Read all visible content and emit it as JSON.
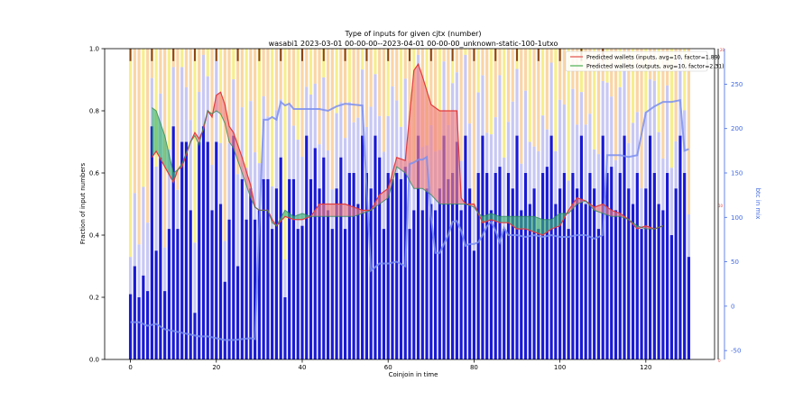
{
  "chart_data": {
    "type": "bar",
    "title": "Type of inputs for given cjtx (number)",
    "subtitle": "wasabi1 2023-03-01 00-00-00--2023-04-01 00-00-00_unknown-static-100-1utxo",
    "xlabel": "Coinjoin in time",
    "ylabel": "Fraction of input numbers",
    "y2label": "btc in mix",
    "xlim": [
      -6,
      136
    ],
    "ylim": [
      0,
      1.0
    ],
    "y2lim": [
      -60,
      290
    ],
    "x_ticks": [
      0,
      20,
      40,
      60,
      80,
      100,
      120
    ],
    "y_ticks": [
      0.0,
      0.2,
      0.4,
      0.6,
      0.8,
      1.0
    ],
    "y2_ticks": [
      -50,
      0,
      50,
      100,
      150,
      200,
      250
    ],
    "grid": false,
    "legend_position": "top-right",
    "legend": [
      {
        "label": "Predicted wallets (inputs, avg=10, factor=1.89)",
        "color": "#e8716c"
      },
      {
        "label": "Predicted wallets (outputs, avg=10, factor=2.31)",
        "color": "#6fbf73"
      }
    ],
    "bar_colors": {
      "fresh": "#1a1ad4",
      "light": "#c8c8f4",
      "remix": "#f0e030",
      "orange": "#f5b35c",
      "brown": "#8b4513"
    },
    "bar_blue_heights": [
      0.21,
      0.3,
      0.2,
      0.27,
      0.22,
      0.75,
      0.35,
      0.65,
      0.22,
      0.42,
      0.75,
      0.42,
      0.7,
      0.7,
      0.48,
      0.15,
      0.7,
      0.75,
      0.7,
      0.48,
      0.7,
      0.5,
      0.25,
      0.45,
      0.72,
      0.3,
      0.58,
      0.45,
      0.55,
      0.45,
      0.48,
      0.58,
      0.58,
      0.42,
      0.55,
      0.65,
      0.2,
      0.58,
      0.58,
      0.42,
      0.43,
      0.72,
      0.58,
      0.68,
      0.55,
      0.65,
      0.48,
      0.42,
      0.55,
      0.65,
      0.42,
      0.6,
      0.6,
      0.5,
      0.72,
      0.6,
      0.55,
      0.72,
      0.65,
      0.42,
      0.6,
      0.58,
      0.6,
      0.58,
      0.62,
      0.42,
      0.48,
      0.72,
      0.48,
      0.55,
      0.5,
      0.48,
      0.55,
      0.72,
      0.58,
      0.6,
      0.7,
      0.48,
      0.72,
      0.55,
      0.35,
      0.6,
      0.72,
      0.6,
      0.48,
      0.6,
      0.62,
      0.42,
      0.6,
      0.55,
      0.72,
      0.48,
      0.6,
      0.5,
      0.55,
      0.42,
      0.6,
      0.62,
      0.72,
      0.5,
      0.55,
      0.6,
      0.42,
      0.6,
      0.55,
      0.72,
      0.5,
      0.6,
      0.55,
      0.42,
      0.72,
      0.6,
      0.62,
      0.48,
      0.6,
      0.72,
      0.55,
      0.5,
      0.6,
      0.42,
      0.55,
      0.72,
      0.6,
      0.5,
      0.48,
      0.6,
      0.4,
      0.55,
      0.72,
      0.6,
      0.33
    ],
    "btc_in_mix_line": {
      "color": "#7b8ff0",
      "points": [
        [
          0,
          -18
        ],
        [
          2,
          -18
        ],
        [
          4,
          -22
        ],
        [
          6,
          -20
        ],
        [
          8,
          -26
        ],
        [
          10,
          -28
        ],
        [
          12,
          -30
        ],
        [
          14,
          -32
        ],
        [
          16,
          -34
        ],
        [
          18,
          -34
        ],
        [
          20,
          -36
        ],
        [
          22,
          -38
        ],
        [
          24,
          -38
        ],
        [
          26,
          -37
        ],
        [
          28,
          -36
        ],
        [
          29,
          -37
        ],
        [
          30,
          95
        ],
        [
          31,
          210
        ],
        [
          32,
          210
        ],
        [
          33,
          213
        ],
        [
          34,
          210
        ],
        [
          35,
          230
        ],
        [
          36,
          226
        ],
        [
          37,
          228
        ],
        [
          38,
          222
        ],
        [
          40,
          222
        ],
        [
          42,
          222
        ],
        [
          44,
          222
        ],
        [
          46,
          220
        ],
        [
          48,
          225
        ],
        [
          50,
          228
        ],
        [
          52,
          227
        ],
        [
          54,
          226
        ],
        [
          56,
          40
        ],
        [
          58,
          48
        ],
        [
          60,
          48
        ],
        [
          62,
          50
        ],
        [
          64,
          45
        ],
        [
          65,
          160
        ],
        [
          66,
          162
        ],
        [
          67,
          165
        ],
        [
          68,
          165
        ],
        [
          69,
          168
        ],
        [
          70,
          100
        ],
        [
          71,
          60
        ],
        [
          72,
          60
        ],
        [
          73,
          70
        ],
        [
          74,
          80
        ],
        [
          75,
          95
        ],
        [
          76,
          96
        ],
        [
          77,
          85
        ],
        [
          78,
          68
        ],
        [
          79,
          70
        ],
        [
          80,
          70
        ],
        [
          81,
          72
        ],
        [
          82,
          80
        ],
        [
          83,
          90
        ],
        [
          84,
          95
        ],
        [
          85,
          85
        ],
        [
          86,
          72
        ],
        [
          87,
          88
        ],
        [
          88,
          80
        ],
        [
          90,
          80
        ],
        [
          92,
          78
        ],
        [
          94,
          80
        ],
        [
          96,
          78
        ],
        [
          98,
          80
        ],
        [
          100,
          78
        ],
        [
          102,
          78
        ],
        [
          104,
          80
        ],
        [
          106,
          80
        ],
        [
          108,
          76
        ],
        [
          110,
          80
        ],
        [
          111,
          170
        ],
        [
          112,
          170
        ],
        [
          114,
          170
        ],
        [
          116,
          168
        ],
        [
          118,
          170
        ],
        [
          120,
          218
        ],
        [
          122,
          225
        ],
        [
          124,
          230
        ],
        [
          126,
          230
        ],
        [
          128,
          232
        ],
        [
          129,
          175
        ],
        [
          130,
          177
        ]
      ]
    },
    "predicted_inputs_line": {
      "color": "#e23c3c",
      "points": [
        [
          5,
          0.65
        ],
        [
          6,
          0.67
        ],
        [
          8,
          0.62
        ],
        [
          10,
          0.57
        ],
        [
          11,
          0.61
        ],
        [
          12,
          0.62
        ],
        [
          14,
          0.7
        ],
        [
          15,
          0.73
        ],
        [
          16,
          0.71
        ],
        [
          17,
          0.74
        ],
        [
          18,
          0.8
        ],
        [
          19,
          0.78
        ],
        [
          20,
          0.85
        ],
        [
          21,
          0.86
        ],
        [
          22,
          0.82
        ],
        [
          23,
          0.75
        ],
        [
          24,
          0.73
        ],
        [
          26,
          0.65
        ],
        [
          28,
          0.56
        ],
        [
          29,
          0.49
        ],
        [
          30,
          0.48
        ],
        [
          32,
          0.48
        ],
        [
          33,
          0.45
        ],
        [
          34,
          0.43
        ],
        [
          36,
          0.46
        ],
        [
          38,
          0.45
        ],
        [
          40,
          0.45
        ],
        [
          42,
          0.46
        ],
        [
          44,
          0.5
        ],
        [
          46,
          0.5
        ],
        [
          48,
          0.5
        ],
        [
          50,
          0.5
        ],
        [
          52,
          0.49
        ],
        [
          54,
          0.48
        ],
        [
          56,
          0.48
        ],
        [
          58,
          0.53
        ],
        [
          60,
          0.55
        ],
        [
          62,
          0.65
        ],
        [
          64,
          0.64
        ],
        [
          66,
          0.93
        ],
        [
          67,
          0.95
        ],
        [
          68,
          0.91
        ],
        [
          70,
          0.82
        ],
        [
          72,
          0.8
        ],
        [
          74,
          0.8
        ],
        [
          76,
          0.8
        ],
        [
          77,
          0.52
        ],
        [
          78,
          0.5
        ],
        [
          80,
          0.5
        ],
        [
          81,
          0.47
        ],
        [
          82,
          0.44
        ],
        [
          84,
          0.45
        ],
        [
          86,
          0.44
        ],
        [
          88,
          0.44
        ],
        [
          90,
          0.42
        ],
        [
          92,
          0.42
        ],
        [
          94,
          0.41
        ],
        [
          96,
          0.4
        ],
        [
          98,
          0.42
        ],
        [
          100,
          0.43
        ],
        [
          102,
          0.48
        ],
        [
          104,
          0.52
        ],
        [
          106,
          0.51
        ],
        [
          108,
          0.49
        ],
        [
          110,
          0.5
        ],
        [
          112,
          0.48
        ],
        [
          114,
          0.47
        ],
        [
          116,
          0.45
        ],
        [
          118,
          0.42
        ],
        [
          120,
          0.43
        ],
        [
          122,
          0.42
        ],
        [
          124,
          0.43
        ]
      ]
    },
    "predicted_outputs_line": {
      "color": "#2e8b57",
      "points": [
        [
          5,
          0.81
        ],
        [
          6,
          0.8
        ],
        [
          8,
          0.72
        ],
        [
          10,
          0.6
        ],
        [
          11,
          0.61
        ],
        [
          12,
          0.63
        ],
        [
          14,
          0.7
        ],
        [
          15,
          0.72
        ],
        [
          16,
          0.69
        ],
        [
          17,
          0.75
        ],
        [
          18,
          0.8
        ],
        [
          19,
          0.79
        ],
        [
          20,
          0.8
        ],
        [
          21,
          0.79
        ],
        [
          22,
          0.76
        ],
        [
          23,
          0.7
        ],
        [
          24,
          0.68
        ],
        [
          26,
          0.6
        ],
        [
          28,
          0.52
        ],
        [
          29,
          0.49
        ],
        [
          30,
          0.48
        ],
        [
          32,
          0.48
        ],
        [
          33,
          0.44
        ],
        [
          34,
          0.43
        ],
        [
          36,
          0.48
        ],
        [
          38,
          0.46
        ],
        [
          40,
          0.47
        ],
        [
          42,
          0.46
        ],
        [
          44,
          0.46
        ],
        [
          46,
          0.46
        ],
        [
          48,
          0.46
        ],
        [
          50,
          0.46
        ],
        [
          52,
          0.46
        ],
        [
          54,
          0.47
        ],
        [
          56,
          0.48
        ],
        [
          58,
          0.5
        ],
        [
          60,
          0.52
        ],
        [
          62,
          0.62
        ],
        [
          64,
          0.6
        ],
        [
          66,
          0.55
        ],
        [
          67,
          0.55
        ],
        [
          68,
          0.55
        ],
        [
          70,
          0.53
        ],
        [
          72,
          0.5
        ],
        [
          74,
          0.5
        ],
        [
          76,
          0.5
        ],
        [
          77,
          0.5
        ],
        [
          78,
          0.5
        ],
        [
          80,
          0.49
        ],
        [
          81,
          0.47
        ],
        [
          82,
          0.46
        ],
        [
          84,
          0.47
        ],
        [
          86,
          0.46
        ],
        [
          88,
          0.46
        ],
        [
          90,
          0.46
        ],
        [
          92,
          0.46
        ],
        [
          94,
          0.46
        ],
        [
          96,
          0.45
        ],
        [
          98,
          0.45
        ],
        [
          100,
          0.47
        ],
        [
          102,
          0.47
        ],
        [
          104,
          0.5
        ],
        [
          106,
          0.51
        ],
        [
          108,
          0.48
        ],
        [
          110,
          0.47
        ],
        [
          112,
          0.46
        ],
        [
          114,
          0.46
        ],
        [
          116,
          0.45
        ],
        [
          118,
          0.43
        ],
        [
          120,
          0.42
        ],
        [
          122,
          0.42
        ],
        [
          124,
          0.43
        ]
      ]
    }
  }
}
